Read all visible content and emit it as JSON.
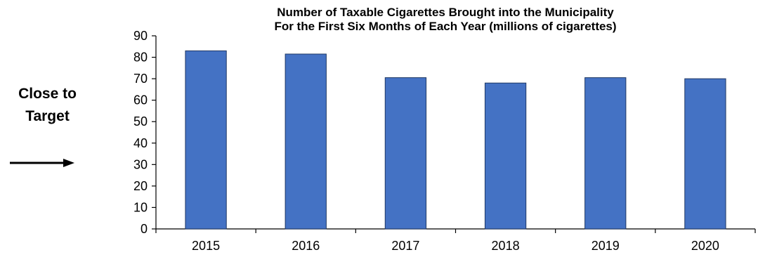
{
  "side_label": [
    "Close to",
    "Target"
  ],
  "arrow_icon": "right-arrow-icon",
  "chart_data": {
    "type": "bar",
    "title": [
      "Number of Taxable Cigarettes Brought into the Municipality",
      "For the First Six Months of Each Year (millions of cigarettes)"
    ],
    "categories": [
      "2015",
      "2016",
      "2017",
      "2018",
      "2019",
      "2020"
    ],
    "values": [
      83,
      81.5,
      70.5,
      68,
      70.5,
      70
    ],
    "xlabel": "",
    "ylabel": "",
    "ylim": [
      0,
      90
    ],
    "yticks": [
      0,
      10,
      20,
      30,
      40,
      50,
      60,
      70,
      80,
      90
    ],
    "grid": false,
    "bar_color": "#4472C4",
    "bar_edge_color": "#1F3864"
  }
}
